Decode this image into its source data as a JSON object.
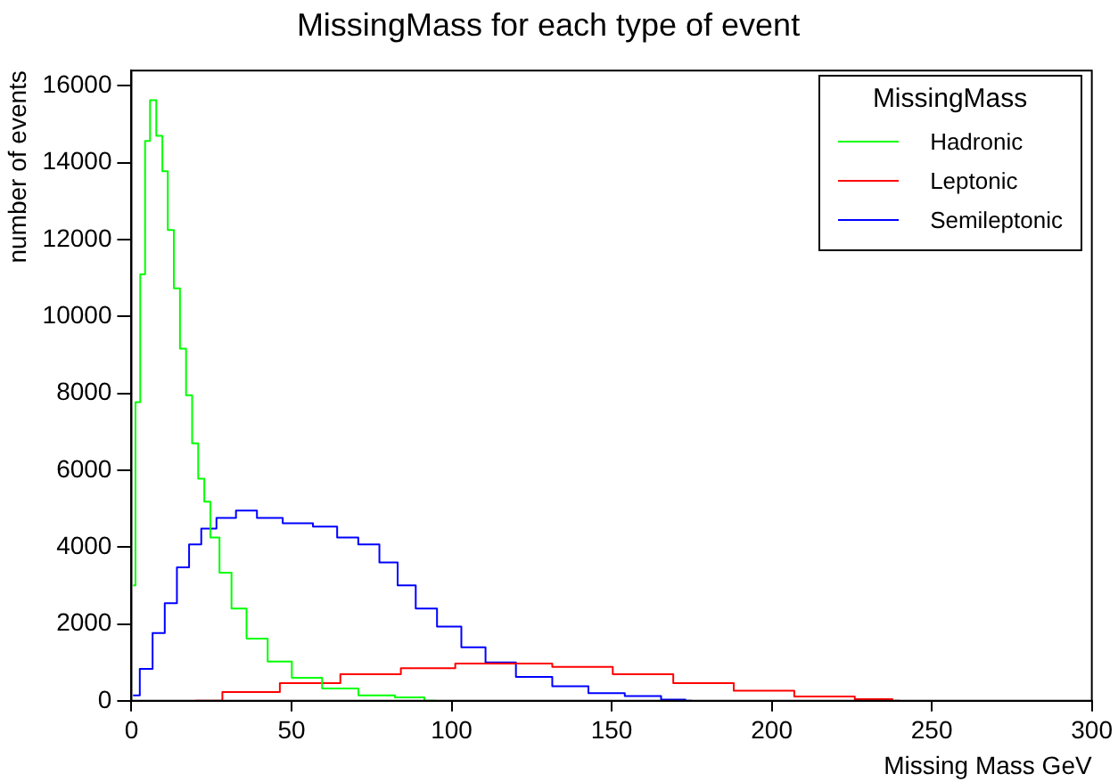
{
  "chart_data": {
    "type": "step",
    "title": "MissingMass for each type of event",
    "xlabel": "Missing Mass GeV",
    "ylabel": "number of events",
    "legend_title": "MissingMass",
    "legend": "top right",
    "grid": false,
    "marker": "none",
    "xlim": [
      0,
      300
    ],
    "xticks": [
      0,
      50,
      100,
      150,
      200,
      250,
      300
    ],
    "ylim": [
      0,
      16400
    ],
    "yticks": [
      0,
      2000,
      4000,
      6000,
      8000,
      10000,
      12000,
      14000,
      16000
    ],
    "series": [
      {
        "name": "Hadronic",
        "color": "#00ff00",
        "x": [
          0.5,
          2,
          3.5,
          5,
          6.6,
          8.9,
          10.4,
          12.3,
          14.2,
          16.1,
          18,
          19.9,
          21.8,
          23.7,
          25.6,
          29.4,
          33.1,
          38.8,
          46.3,
          53.9,
          65.2,
          76.6,
          88,
          95
        ],
        "values": [
          3000,
          7770,
          11100,
          14570,
          15630,
          14700,
          13780,
          12250,
          10730,
          9160,
          7950,
          6700,
          5780,
          5180,
          4250,
          3330,
          2400,
          1620,
          1020,
          600,
          320,
          140,
          90,
          0
        ]
      },
      {
        "name": "Leptonic",
        "color": "#ff0000",
        "x": [
          19.9,
          36.9,
          55.8,
          74.7,
          93.6,
          108.7,
          122,
          140.9,
          159.8,
          178.7,
          197.6,
          216.5,
          235.4,
          240
        ],
        "values": [
          0,
          230,
          460,
          690,
          850,
          970,
          970,
          880,
          690,
          460,
          260,
          110,
          40,
          0
        ]
      },
      {
        "name": "Semileptonic",
        "color": "#0000ff",
        "x": [
          0.5,
          4.7,
          8.5,
          12.3,
          16.1,
          19.9,
          23.7,
          29.4,
          35.9,
          42.5,
          52,
          61.4,
          67.1,
          74.6,
          80.3,
          86,
          91.6,
          99.3,
          106.8,
          114.4,
          125.8,
          137.1,
          148.4,
          159.8,
          171.1,
          175
        ],
        "values": [
          140,
          830,
          1760,
          2540,
          3470,
          4070,
          4480,
          4760,
          4950,
          4760,
          4620,
          4530,
          4250,
          4070,
          3600,
          3000,
          2400,
          1930,
          1390,
          1000,
          620,
          380,
          200,
          120,
          30,
          0
        ]
      }
    ]
  }
}
